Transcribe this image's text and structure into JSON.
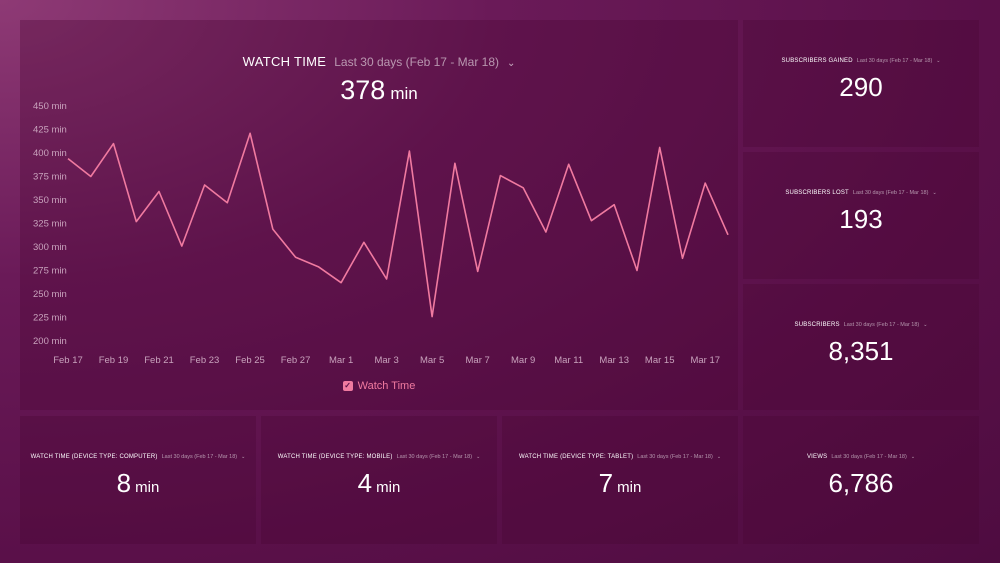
{
  "main": {
    "title": "WATCH TIME",
    "range": "Last 30 days (Feb 17 - Mar 18)",
    "value": "378",
    "unit": "min",
    "legend": "Watch Time"
  },
  "chart_data": {
    "type": "line",
    "title": "WATCH TIME",
    "xlabel": "",
    "ylabel": "",
    "ylim": [
      200,
      450
    ],
    "yticks": [
      200,
      225,
      250,
      275,
      300,
      325,
      350,
      375,
      400,
      425,
      450
    ],
    "ytick_labels": [
      "200 min",
      "225 min",
      "250 min",
      "275 min",
      "300 min",
      "325 min",
      "350 min",
      "375 min",
      "400 min",
      "425 min",
      "450 min"
    ],
    "x_tick_labels": [
      "Feb 17",
      "Feb 19",
      "Feb 21",
      "Feb 23",
      "Feb 25",
      "Feb 27",
      "Mar 1",
      "Mar 3",
      "Mar 5",
      "Mar 7",
      "Mar 9",
      "Mar 11",
      "Mar 13",
      "Mar 15",
      "Mar 17"
    ],
    "x": [
      "Feb 17",
      "Feb 18",
      "Feb 19",
      "Feb 20",
      "Feb 21",
      "Feb 22",
      "Feb 23",
      "Feb 24",
      "Feb 25",
      "Feb 26",
      "Feb 27",
      "Feb 28",
      "Mar 1",
      "Mar 2",
      "Mar 3",
      "Mar 4",
      "Mar 5",
      "Mar 6",
      "Mar 7",
      "Mar 8",
      "Mar 9",
      "Mar 10",
      "Mar 11",
      "Mar 12",
      "Mar 13",
      "Mar 14",
      "Mar 15",
      "Mar 16",
      "Mar 17",
      "Mar 18"
    ],
    "series": [
      {
        "name": "Watch Time",
        "color": "#f07aa0",
        "values": [
          394,
          375,
          410,
          327,
          359,
          301,
          366,
          347,
          421,
          319,
          289,
          279,
          262,
          305,
          266,
          402,
          226,
          389,
          274,
          376,
          363,
          316,
          388,
          328,
          345,
          275,
          406,
          288,
          368,
          313
        ]
      }
    ],
    "legend": "bottom-center",
    "grid": false
  },
  "cards": {
    "subs_gained": {
      "title": "SUBSCRIBERS GAINED",
      "range": "Last 30 days (Feb 17 - Mar 18)",
      "value": "290"
    },
    "subs_lost": {
      "title": "SUBSCRIBERS LOST",
      "range": "Last 30 days (Feb 17 - Mar 18)",
      "value": "193"
    },
    "subscribers": {
      "title": "SUBSCRIBERS",
      "range": "Last 30 days (Feb 17 - Mar 18)",
      "value": "8,351"
    },
    "views": {
      "title": "VIEWS",
      "range": "Last 30 days (Feb 17 - Mar 18)",
      "value": "6,786"
    },
    "wt_computer": {
      "title": "WATCH TIME (DEVICE TYPE: COMPUTER)",
      "range": "Last 30 days (Feb 17 - Mar 18)",
      "value": "8",
      "unit": "min"
    },
    "wt_mobile": {
      "title": "WATCH TIME (DEVICE TYPE: MOBILE)",
      "range": "Last 30 days (Feb 17 - Mar 18)",
      "value": "4",
      "unit": "min"
    },
    "wt_tablet": {
      "title": "WATCH TIME (DEVICE TYPE: TABLET)",
      "range": "Last 30 days (Feb 17 - Mar 18)",
      "value": "7",
      "unit": "min"
    }
  },
  "colors": {
    "accent": "#f07aa0",
    "axis_text": "#c9a3bd"
  }
}
